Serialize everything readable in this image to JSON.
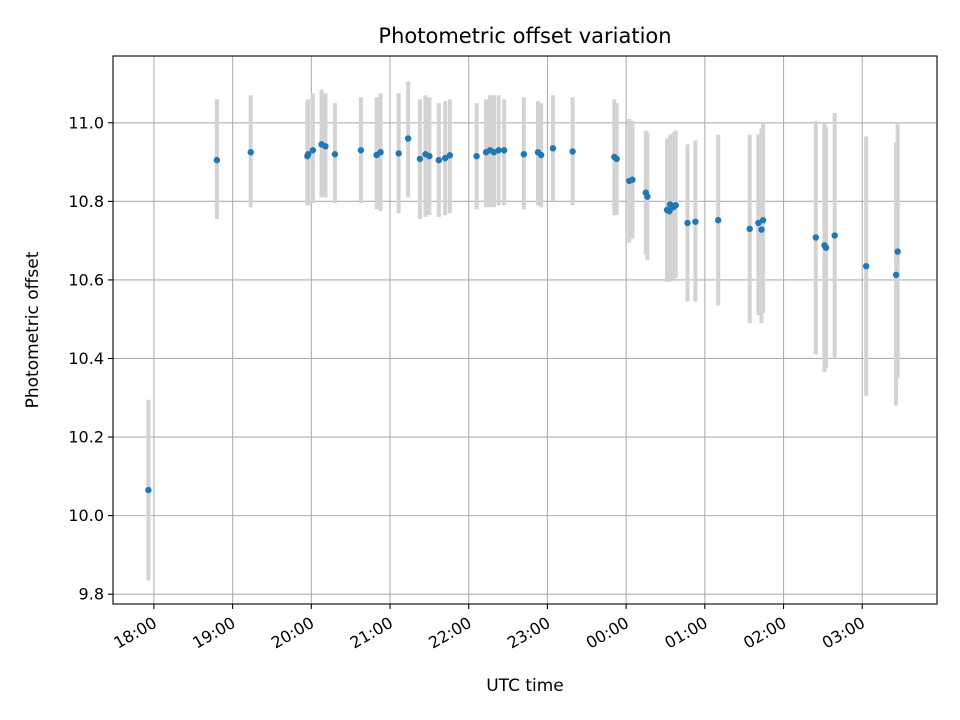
{
  "chart_data": {
    "type": "scatter",
    "title": "Photometric offset variation",
    "xlabel": "UTC time",
    "ylabel": "Photometric offset",
    "x_axis": {
      "kind": "time",
      "unit": "hours",
      "range": [
        -6.52,
        3.95
      ],
      "ticks": [
        {
          "value": -6,
          "label": "18:00"
        },
        {
          "value": -5,
          "label": "19:00"
        },
        {
          "value": -4,
          "label": "20:00"
        },
        {
          "value": -3,
          "label": "21:00"
        },
        {
          "value": -2,
          "label": "22:00"
        },
        {
          "value": -1,
          "label": "23:00"
        },
        {
          "value": 0,
          "label": "00:00"
        },
        {
          "value": 1,
          "label": "01:00"
        },
        {
          "value": 2,
          "label": "02:00"
        },
        {
          "value": 3,
          "label": "03:00"
        }
      ]
    },
    "y_axis": {
      "range": [
        9.775,
        11.17
      ],
      "ticks": [
        {
          "value": 9.8,
          "label": "9.8"
        },
        {
          "value": 10.0,
          "label": "10.0"
        },
        {
          "value": 10.2,
          "label": "10.2"
        },
        {
          "value": 10.4,
          "label": "10.4"
        },
        {
          "value": 10.6,
          "label": "10.6"
        },
        {
          "value": 10.8,
          "label": "10.8"
        },
        {
          "value": 11.0,
          "label": "11.0"
        }
      ]
    },
    "grid": true,
    "point_color": "#1f77b4",
    "errorbar_color": "#d3d3d3",
    "points": [
      {
        "x": -6.07,
        "y": 10.065,
        "lo": 9.835,
        "hi": 10.295
      },
      {
        "x": -5.2,
        "y": 10.905,
        "lo": 10.755,
        "hi": 11.06
      },
      {
        "x": -4.77,
        "y": 10.925,
        "lo": 10.785,
        "hi": 11.07
      },
      {
        "x": -4.05,
        "y": 10.915,
        "lo": 10.79,
        "hi": 11.055
      },
      {
        "x": -4.04,
        "y": 10.92,
        "lo": 10.79,
        "hi": 11.06
      },
      {
        "x": -3.98,
        "y": 10.93,
        "lo": 10.795,
        "hi": 11.075
      },
      {
        "x": -3.87,
        "y": 10.945,
        "lo": 10.81,
        "hi": 11.085
      },
      {
        "x": -3.82,
        "y": 10.94,
        "lo": 10.81,
        "hi": 11.075
      },
      {
        "x": -3.7,
        "y": 10.92,
        "lo": 10.795,
        "hi": 11.05
      },
      {
        "x": -3.37,
        "y": 10.93,
        "lo": 10.795,
        "hi": 11.065
      },
      {
        "x": -3.17,
        "y": 10.918,
        "lo": 10.78,
        "hi": 11.065
      },
      {
        "x": -3.12,
        "y": 10.925,
        "lo": 10.775,
        "hi": 11.075
      },
      {
        "x": -2.89,
        "y": 10.922,
        "lo": 10.77,
        "hi": 11.075
      },
      {
        "x": -2.77,
        "y": 10.96,
        "lo": 10.81,
        "hi": 11.105
      },
      {
        "x": -2.62,
        "y": 10.908,
        "lo": 10.755,
        "hi": 11.06
      },
      {
        "x": -2.55,
        "y": 10.92,
        "lo": 10.76,
        "hi": 11.07
      },
      {
        "x": -2.5,
        "y": 10.915,
        "lo": 10.765,
        "hi": 11.065
      },
      {
        "x": -2.38,
        "y": 10.905,
        "lo": 10.76,
        "hi": 11.05
      },
      {
        "x": -2.3,
        "y": 10.91,
        "lo": 10.765,
        "hi": 11.055
      },
      {
        "x": -2.24,
        "y": 10.917,
        "lo": 10.77,
        "hi": 11.06
      },
      {
        "x": -1.9,
        "y": 10.915,
        "lo": 10.78,
        "hi": 11.05
      },
      {
        "x": -1.78,
        "y": 10.925,
        "lo": 10.785,
        "hi": 11.06
      },
      {
        "x": -1.73,
        "y": 10.93,
        "lo": 10.785,
        "hi": 11.07
      },
      {
        "x": -1.68,
        "y": 10.925,
        "lo": 10.785,
        "hi": 11.07
      },
      {
        "x": -1.62,
        "y": 10.93,
        "lo": 10.79,
        "hi": 11.07
      },
      {
        "x": -1.55,
        "y": 10.93,
        "lo": 10.79,
        "hi": 11.06
      },
      {
        "x": -1.3,
        "y": 10.92,
        "lo": 10.78,
        "hi": 11.065
      },
      {
        "x": -1.12,
        "y": 10.925,
        "lo": 10.79,
        "hi": 11.055
      },
      {
        "x": -1.08,
        "y": 10.918,
        "lo": 10.785,
        "hi": 11.05
      },
      {
        "x": -0.93,
        "y": 10.935,
        "lo": 10.8,
        "hi": 11.07
      },
      {
        "x": -0.68,
        "y": 10.927,
        "lo": 10.79,
        "hi": 11.065
      },
      {
        "x": -0.15,
        "y": 10.913,
        "lo": 10.765,
        "hi": 11.06
      },
      {
        "x": -0.12,
        "y": 10.908,
        "lo": 10.765,
        "hi": 11.05
      },
      {
        "x": 0.04,
        "y": 10.852,
        "lo": 10.695,
        "hi": 11.01
      },
      {
        "x": 0.08,
        "y": 10.855,
        "lo": 10.705,
        "hi": 11.005
      },
      {
        "x": 0.25,
        "y": 10.822,
        "lo": 10.665,
        "hi": 10.98
      },
      {
        "x": 0.27,
        "y": 10.812,
        "lo": 10.65,
        "hi": 10.975
      },
      {
        "x": 0.52,
        "y": 10.778,
        "lo": 10.595,
        "hi": 10.96
      },
      {
        "x": 0.55,
        "y": 10.775,
        "lo": 10.595,
        "hi": 10.96
      },
      {
        "x": 0.56,
        "y": 10.792,
        "lo": 10.61,
        "hi": 10.97
      },
      {
        "x": 0.6,
        "y": 10.785,
        "lo": 10.6,
        "hi": 10.975
      },
      {
        "x": 0.63,
        "y": 10.79,
        "lo": 10.605,
        "hi": 10.98
      },
      {
        "x": 0.78,
        "y": 10.745,
        "lo": 10.545,
        "hi": 10.945
      },
      {
        "x": 0.88,
        "y": 10.748,
        "lo": 10.545,
        "hi": 10.955
      },
      {
        "x": 1.17,
        "y": 10.752,
        "lo": 10.535,
        "hi": 10.97
      },
      {
        "x": 1.57,
        "y": 10.73,
        "lo": 10.49,
        "hi": 10.97
      },
      {
        "x": 1.68,
        "y": 10.745,
        "lo": 10.51,
        "hi": 10.97
      },
      {
        "x": 1.72,
        "y": 10.728,
        "lo": 10.49,
        "hi": 10.985
      },
      {
        "x": 1.74,
        "y": 10.752,
        "lo": 10.515,
        "hi": 11.0
      },
      {
        "x": 2.41,
        "y": 10.708,
        "lo": 10.41,
        "hi": 11.005
      },
      {
        "x": 2.52,
        "y": 10.688,
        "lo": 10.365,
        "hi": 11.0
      },
      {
        "x": 2.54,
        "y": 10.682,
        "lo": 10.375,
        "hi": 10.99
      },
      {
        "x": 2.65,
        "y": 10.713,
        "lo": 10.4,
        "hi": 11.025
      },
      {
        "x": 3.05,
        "y": 10.635,
        "lo": 10.305,
        "hi": 10.965
      },
      {
        "x": 3.43,
        "y": 10.613,
        "lo": 10.28,
        "hi": 10.95
      },
      {
        "x": 3.45,
        "y": 10.672,
        "lo": 10.35,
        "hi": 11.0
      }
    ]
  }
}
